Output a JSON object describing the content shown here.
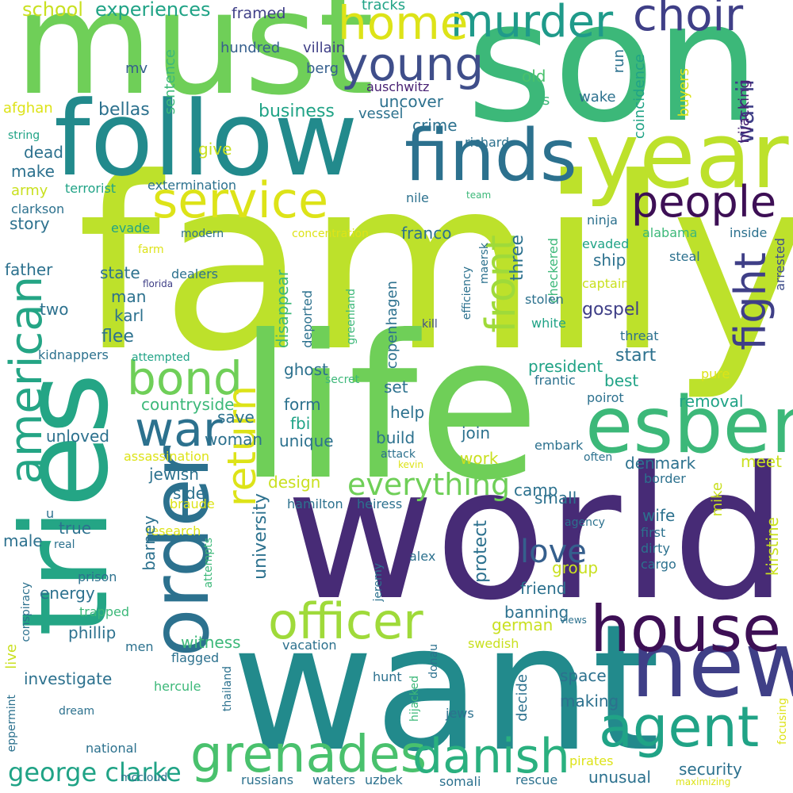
{
  "words": [
    {
      "text": "family",
      "color": "#bde12b"
    },
    {
      "text": "son",
      "color": "#3cb879"
    },
    {
      "text": "must",
      "color": "#6fcf58"
    },
    {
      "text": "world",
      "color": "#472b76"
    },
    {
      "text": "life",
      "color": "#6fcf58"
    },
    {
      "text": "want",
      "color": "#228a8c"
    },
    {
      "text": "tries",
      "color": "#24a585"
    },
    {
      "text": "follow",
      "color": "#228a8c"
    },
    {
      "text": "year",
      "color": "#bde12b"
    },
    {
      "text": "new",
      "color": "#3f3f87"
    },
    {
      "text": "esben",
      "color": "#3cb879"
    },
    {
      "text": "order",
      "color": "#2c718e"
    },
    {
      "text": "finds",
      "color": "#2c718e"
    },
    {
      "text": "house",
      "color": "#3d0f55"
    },
    {
      "text": "agent",
      "color": "#20a386"
    },
    {
      "text": "grenades",
      "color": "#49c16d"
    },
    {
      "text": "danish",
      "color": "#2ab07f"
    },
    {
      "text": "officer",
      "color": "#9fda3a"
    },
    {
      "text": "service",
      "color": "#dde318"
    },
    {
      "text": "war",
      "color": "#2c718e"
    },
    {
      "text": "bond",
      "color": "#6fcf58"
    },
    {
      "text": "people",
      "color": "#3d0f55"
    },
    {
      "text": "young",
      "color": "#3f4e8a"
    },
    {
      "text": "murder",
      "color": "#1f9a8a"
    },
    {
      "text": "home",
      "color": "#dde318"
    },
    {
      "text": "choir",
      "color": "#3f3f87"
    },
    {
      "text": "american",
      "color": "#24a585"
    },
    {
      "text": "fight",
      "color": "#3f3f87"
    },
    {
      "text": "return",
      "color": "#dde318"
    },
    {
      "text": "front",
      "color": "#9fda3a"
    },
    {
      "text": "everything",
      "color": "#6fcf58"
    },
    {
      "text": "love",
      "color": "#355f8d"
    },
    {
      "text": "george clarke",
      "color": "#20a386"
    },
    {
      "text": "war ii",
      "color": "#3f3f87"
    },
    {
      "text": "school",
      "color": "#c9e020"
    },
    {
      "text": "experiences",
      "color": "#20a386"
    },
    {
      "text": "framed",
      "color": "#3f3f87"
    },
    {
      "text": "tracks",
      "color": "#20a386"
    },
    {
      "text": "hundred",
      "color": "#355f8d"
    },
    {
      "text": "villain",
      "color": "#3f3f87"
    },
    {
      "text": "run",
      "color": "#2c718e"
    },
    {
      "text": "berg",
      "color": "#355f8d"
    },
    {
      "text": "auschwitz",
      "color": "#482173"
    },
    {
      "text": "old",
      "color": "#49c16d"
    },
    {
      "text": "mv",
      "color": "#355f8d"
    },
    {
      "text": "sentence",
      "color": "#3cb879"
    },
    {
      "text": "coincidence",
      "color": "#20a386"
    },
    {
      "text": "buyers",
      "color": "#dde318"
    },
    {
      "text": "hijacking",
      "color": "#482173"
    },
    {
      "text": "afghan",
      "color": "#dde318"
    },
    {
      "text": "bellas",
      "color": "#2c718e"
    },
    {
      "text": "business",
      "color": "#20a386"
    },
    {
      "text": "uncover",
      "color": "#2c718e"
    },
    {
      "text": "vessel",
      "color": "#2c718e"
    },
    {
      "text": "wake",
      "color": "#2c718e"
    },
    {
      "text": "s",
      "color": "#3cb879"
    },
    {
      "text": "string",
      "color": "#20a386"
    },
    {
      "text": "crime",
      "color": "#2c718e"
    },
    {
      "text": "dead",
      "color": "#2c718e"
    },
    {
      "text": "give",
      "color": "#c9e020"
    },
    {
      "text": "richard",
      "color": "#2c718e"
    },
    {
      "text": "make",
      "color": "#2c718e"
    },
    {
      "text": "terrorist",
      "color": "#20a386"
    },
    {
      "text": "extermination",
      "color": "#2c718e"
    },
    {
      "text": "army",
      "color": "#c9e020"
    },
    {
      "text": "nile",
      "color": "#2c718e"
    },
    {
      "text": "team",
      "color": "#3cb879"
    },
    {
      "text": "clarkson",
      "color": "#2c718e"
    },
    {
      "text": "ninja",
      "color": "#2c718e"
    },
    {
      "text": "story",
      "color": "#2c718e"
    },
    {
      "text": "evade",
      "color": "#20a386"
    },
    {
      "text": "modern",
      "color": "#2c718e"
    },
    {
      "text": "concentration",
      "color": "#dde318"
    },
    {
      "text": "alabama",
      "color": "#3cb879"
    },
    {
      "text": "inside",
      "color": "#2c718e"
    },
    {
      "text": "farm",
      "color": "#dde318"
    },
    {
      "text": "evaded",
      "color": "#20a386"
    },
    {
      "text": "steal",
      "color": "#2c718e"
    },
    {
      "text": "arrested",
      "color": "#3f4e8a"
    },
    {
      "text": "franco",
      "color": "#2c718e"
    },
    {
      "text": "three",
      "color": "#2c718e"
    },
    {
      "text": "checkered",
      "color": "#3cb879"
    },
    {
      "text": "maersk",
      "color": "#2c718e"
    },
    {
      "text": "father",
      "color": "#2c718e"
    },
    {
      "text": "state",
      "color": "#2c718e"
    },
    {
      "text": "florida",
      "color": "#3f3f87"
    },
    {
      "text": "dealers",
      "color": "#2c718e"
    },
    {
      "text": "ship",
      "color": "#2c718e"
    },
    {
      "text": "captain",
      "color": "#c9e020"
    },
    {
      "text": "efficiency",
      "color": "#2c718e"
    },
    {
      "text": "man",
      "color": "#2c718e"
    },
    {
      "text": "disappear",
      "color": "#3cb879"
    },
    {
      "text": "copenhagen",
      "color": "#2c718e"
    },
    {
      "text": "greenland",
      "color": "#3cb879"
    },
    {
      "text": "two",
      "color": "#2c718e"
    },
    {
      "text": "karl",
      "color": "#2c718e"
    },
    {
      "text": "stolen",
      "color": "#2c718e"
    },
    {
      "text": "gospel",
      "color": "#3f3f87"
    },
    {
      "text": "deported",
      "color": "#2c718e"
    },
    {
      "text": "kill",
      "color": "#3f4e8a"
    },
    {
      "text": "white",
      "color": "#20a386"
    },
    {
      "text": "flee",
      "color": "#2c718e"
    },
    {
      "text": "threat",
      "color": "#2c718e"
    },
    {
      "text": "kidnappers",
      "color": "#2c718e"
    },
    {
      "text": "attempted",
      "color": "#20a386"
    },
    {
      "text": "start",
      "color": "#2c718e"
    },
    {
      "text": "president",
      "color": "#20a386"
    },
    {
      "text": "ghost",
      "color": "#2c718e"
    },
    {
      "text": "secret",
      "color": "#3cb879"
    },
    {
      "text": "frantic",
      "color": "#2c718e"
    },
    {
      "text": "pure",
      "color": "#dde318"
    },
    {
      "text": "best",
      "color": "#20a386"
    },
    {
      "text": "set",
      "color": "#2c718e"
    },
    {
      "text": "form",
      "color": "#2c718e"
    },
    {
      "text": "countryside",
      "color": "#3cb879"
    },
    {
      "text": "removal",
      "color": "#20a386"
    },
    {
      "text": "fbi",
      "color": "#20a386"
    },
    {
      "text": "help",
      "color": "#2c718e"
    },
    {
      "text": "save",
      "color": "#2c718e"
    },
    {
      "text": "unloved",
      "color": "#2c718e"
    },
    {
      "text": "woman",
      "color": "#2c718e"
    },
    {
      "text": "unique",
      "color": "#2c718e"
    },
    {
      "text": "build",
      "color": "#2c718e"
    },
    {
      "text": "join",
      "color": "#2c718e"
    },
    {
      "text": "embark",
      "color": "#2c718e"
    },
    {
      "text": "assassination",
      "color": "#dde318"
    },
    {
      "text": "attack",
      "color": "#2c718e"
    },
    {
      "text": "kevin",
      "color": "#dde318"
    },
    {
      "text": "work",
      "color": "#c9e020"
    },
    {
      "text": "often",
      "color": "#2c718e"
    },
    {
      "text": "denmark",
      "color": "#2c718e"
    },
    {
      "text": "meet",
      "color": "#c9e020"
    },
    {
      "text": "jewish",
      "color": "#2c718e"
    },
    {
      "text": "design",
      "color": "#c9e020"
    },
    {
      "text": "camp",
      "color": "#2c718e"
    },
    {
      "text": "border",
      "color": "#2c718e"
    },
    {
      "text": "side",
      "color": "#2c718e"
    },
    {
      "text": "braude",
      "color": "#dde318"
    },
    {
      "text": "hamilton",
      "color": "#2c718e"
    },
    {
      "text": "heiress",
      "color": "#2c718e"
    },
    {
      "text": "small",
      "color": "#2c718e"
    },
    {
      "text": "mike",
      "color": "#c9e020"
    },
    {
      "text": "u",
      "color": "#2c718e"
    },
    {
      "text": "agency",
      "color": "#2c718e"
    },
    {
      "text": "wife",
      "color": "#2c718e"
    },
    {
      "text": "kirstine",
      "color": "#c9e020"
    },
    {
      "text": "true",
      "color": "#2c718e"
    },
    {
      "text": "research",
      "color": "#dde318"
    },
    {
      "text": "barney",
      "color": "#2c718e"
    },
    {
      "text": "male",
      "color": "#2c718e"
    },
    {
      "text": "real",
      "color": "#2c718e"
    },
    {
      "text": "university",
      "color": "#2c718e"
    },
    {
      "text": "protect",
      "color": "#2c718e"
    },
    {
      "text": "first",
      "color": "#2c718e"
    },
    {
      "text": "dirty",
      "color": "#2c718e"
    },
    {
      "text": "group",
      "color": "#c9e020"
    },
    {
      "text": "attempts",
      "color": "#3cb879"
    },
    {
      "text": "alex",
      "color": "#2c718e"
    },
    {
      "text": "cargo",
      "color": "#2c718e"
    },
    {
      "text": "prison",
      "color": "#2c718e"
    },
    {
      "text": "energy",
      "color": "#2c718e"
    },
    {
      "text": "jeremy",
      "color": "#2c718e"
    },
    {
      "text": "friend",
      "color": "#2c718e"
    },
    {
      "text": "conspiracy",
      "color": "#2c718e"
    },
    {
      "text": "trapped",
      "color": "#3cb879"
    },
    {
      "text": "banning",
      "color": "#2c718e"
    },
    {
      "text": "views",
      "color": "#2c718e"
    },
    {
      "text": "phillip",
      "color": "#2c718e"
    },
    {
      "text": "german",
      "color": "#c9e020"
    },
    {
      "text": "live",
      "color": "#c9e020"
    },
    {
      "text": "witness",
      "color": "#3cb879"
    },
    {
      "text": "men",
      "color": "#2c718e"
    },
    {
      "text": "vacation",
      "color": "#2c718e"
    },
    {
      "text": "swedish",
      "color": "#c9e020"
    },
    {
      "text": "flagged",
      "color": "#2c718e"
    },
    {
      "text": "donau",
      "color": "#2c718e"
    },
    {
      "text": "investigate",
      "color": "#2c718e"
    },
    {
      "text": "hercule",
      "color": "#3cb879"
    },
    {
      "text": "space",
      "color": "#2c718e"
    },
    {
      "text": "decide",
      "color": "#2c718e"
    },
    {
      "text": "hunt",
      "color": "#2c718e"
    },
    {
      "text": "thailand",
      "color": "#2c718e"
    },
    {
      "text": "making",
      "color": "#2c718e"
    },
    {
      "text": "eppermint",
      "color": "#2c718e"
    },
    {
      "text": "dream",
      "color": "#2c718e"
    },
    {
      "text": "hijacked",
      "color": "#3cb879"
    },
    {
      "text": "jews",
      "color": "#2c718e"
    },
    {
      "text": "focusing",
      "color": "#dde318"
    },
    {
      "text": "national",
      "color": "#2c718e"
    },
    {
      "text": "pirates",
      "color": "#dde318"
    },
    {
      "text": "security",
      "color": "#2c718e"
    },
    {
      "text": "unusual",
      "color": "#2c718e"
    },
    {
      "text": "mccloud",
      "color": "#2c718e"
    },
    {
      "text": "russians",
      "color": "#2c718e"
    },
    {
      "text": "waters",
      "color": "#2c718e"
    },
    {
      "text": "uzbek",
      "color": "#2c718e"
    },
    {
      "text": "somali",
      "color": "#2c718e"
    },
    {
      "text": "rescue",
      "color": "#2c718e"
    },
    {
      "text": "maximizing",
      "color": "#dde318"
    },
    {
      "text": "poirot",
      "color": "#2c718e"
    }
  ]
}
